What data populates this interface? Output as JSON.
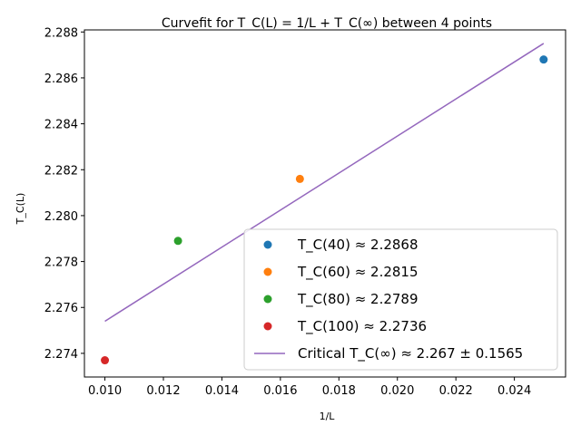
{
  "chart_data": {
    "type": "scatter",
    "title": "Curvefit for T_C(L) = 1/L + T_C(∞) between 4 points",
    "xlabel": "1/L",
    "ylabel": "T_C(L)",
    "xlim": [
      0.0093,
      0.02575
    ],
    "ylim": [
      2.27297,
      2.28809
    ],
    "x_ticks": [
      0.01,
      0.012,
      0.014,
      0.016,
      0.018,
      0.02,
      0.022,
      0.024
    ],
    "x_tick_labels": [
      "0.010",
      "0.012",
      "0.014",
      "0.016",
      "0.018",
      "0.020",
      "0.022",
      "0.024"
    ],
    "y_ticks": [
      2.274,
      2.276,
      2.278,
      2.28,
      2.282,
      2.284,
      2.286,
      2.288
    ],
    "y_tick_labels": [
      "2.274",
      "2.276",
      "2.278",
      "2.280",
      "2.282",
      "2.284",
      "2.286",
      "2.288"
    ],
    "grid": false,
    "legend_position": "lower-right",
    "series": [
      {
        "name": "T_C(40) ≈ 2.2868",
        "kind": "point",
        "color": "#1f77b4",
        "x": [
          0.025
        ],
        "y": [
          2.2868
        ]
      },
      {
        "name": "T_C(60) ≈ 2.2815",
        "kind": "point",
        "color": "#ff7f0e",
        "x": [
          0.016667
        ],
        "y": [
          2.2816
        ]
      },
      {
        "name": "T_C(80) ≈ 2.2789",
        "kind": "point",
        "color": "#2ca02c",
        "x": [
          0.0125
        ],
        "y": [
          2.2789
        ]
      },
      {
        "name": "T_C(100) ≈ 2.2736",
        "kind": "point",
        "color": "#d62728",
        "x": [
          0.01
        ],
        "y": [
          2.2737
        ]
      },
      {
        "name": "Critical T_C(∞) ≈ 2.267 ± 0.1565",
        "kind": "line",
        "color": "#9467bd",
        "x": [
          0.01,
          0.025
        ],
        "y": [
          2.2754,
          2.2875
        ]
      }
    ]
  }
}
